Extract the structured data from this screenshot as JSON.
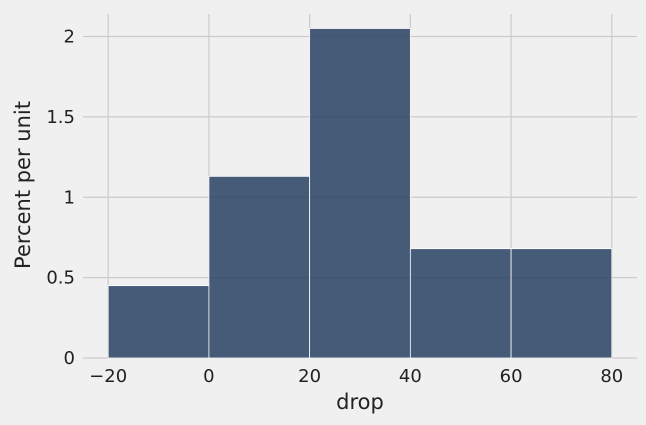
{
  "chart_data": {
    "type": "histogram",
    "title": "",
    "xlabel": "drop",
    "ylabel": "Percent per unit",
    "bins": [
      {
        "start": -20,
        "end": 0,
        "value": 0.45
      },
      {
        "start": 0,
        "end": 20,
        "value": 1.13
      },
      {
        "start": 20,
        "end": 40,
        "value": 2.05
      },
      {
        "start": 40,
        "end": 60,
        "value": 0.68
      },
      {
        "start": 60,
        "end": 80,
        "value": 0.68
      }
    ],
    "xlim": [
      -25,
      85
    ],
    "ylim": [
      0,
      2.14
    ],
    "xticks": [
      -20,
      0,
      20,
      40,
      60,
      80
    ],
    "xtick_labels": [
      "−20",
      "0",
      "20",
      "40",
      "60",
      "80"
    ],
    "yticks": [
      0,
      0.5,
      1,
      1.5,
      2
    ],
    "ytick_labels": [
      "0",
      "0.5",
      "1",
      "1.5",
      "2"
    ],
    "grid": true,
    "bar_color": "#2e4566",
    "background_color": "#f0f0f0",
    "grid_color": "#cbcbcb"
  }
}
